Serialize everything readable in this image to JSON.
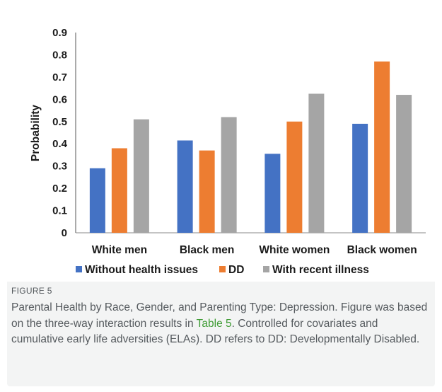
{
  "figure": {
    "label": "FIGURE 5",
    "caption_before_link": "Parental Health by Race, Gender, and Parenting Type: Depression. Figure was based on the three-way interaction results in ",
    "caption_link": "Table 5",
    "caption_after_link": ". Controlled for covariates and cumulative early life adversities (ELAs). DD refers to DD: Developmentally Disabled.",
    "link_color": "#3f9c35"
  },
  "chart_data": {
    "type": "bar",
    "title": "",
    "xlabel": "",
    "ylabel": "Probability",
    "ylim": [
      0,
      0.9
    ],
    "yticks": [
      "0",
      "0.1",
      "0.2",
      "0.3",
      "0.4",
      "0.5",
      "0.6",
      "0.7",
      "0.8",
      "0.9"
    ],
    "categories": [
      "White men",
      "Black men",
      "White women",
      "Black women"
    ],
    "series": [
      {
        "name": "Without health issues",
        "color": "#4472c4",
        "values": [
          0.29,
          0.415,
          0.355,
          0.49
        ]
      },
      {
        "name": "DD",
        "color": "#ed7d31",
        "values": [
          0.38,
          0.37,
          0.5,
          0.77
        ]
      },
      {
        "name": "With recent illness",
        "color": "#a5a5a5",
        "values": [
          0.51,
          0.52,
          0.625,
          0.62
        ]
      }
    ],
    "grid": false,
    "legend_position": "bottom"
  }
}
